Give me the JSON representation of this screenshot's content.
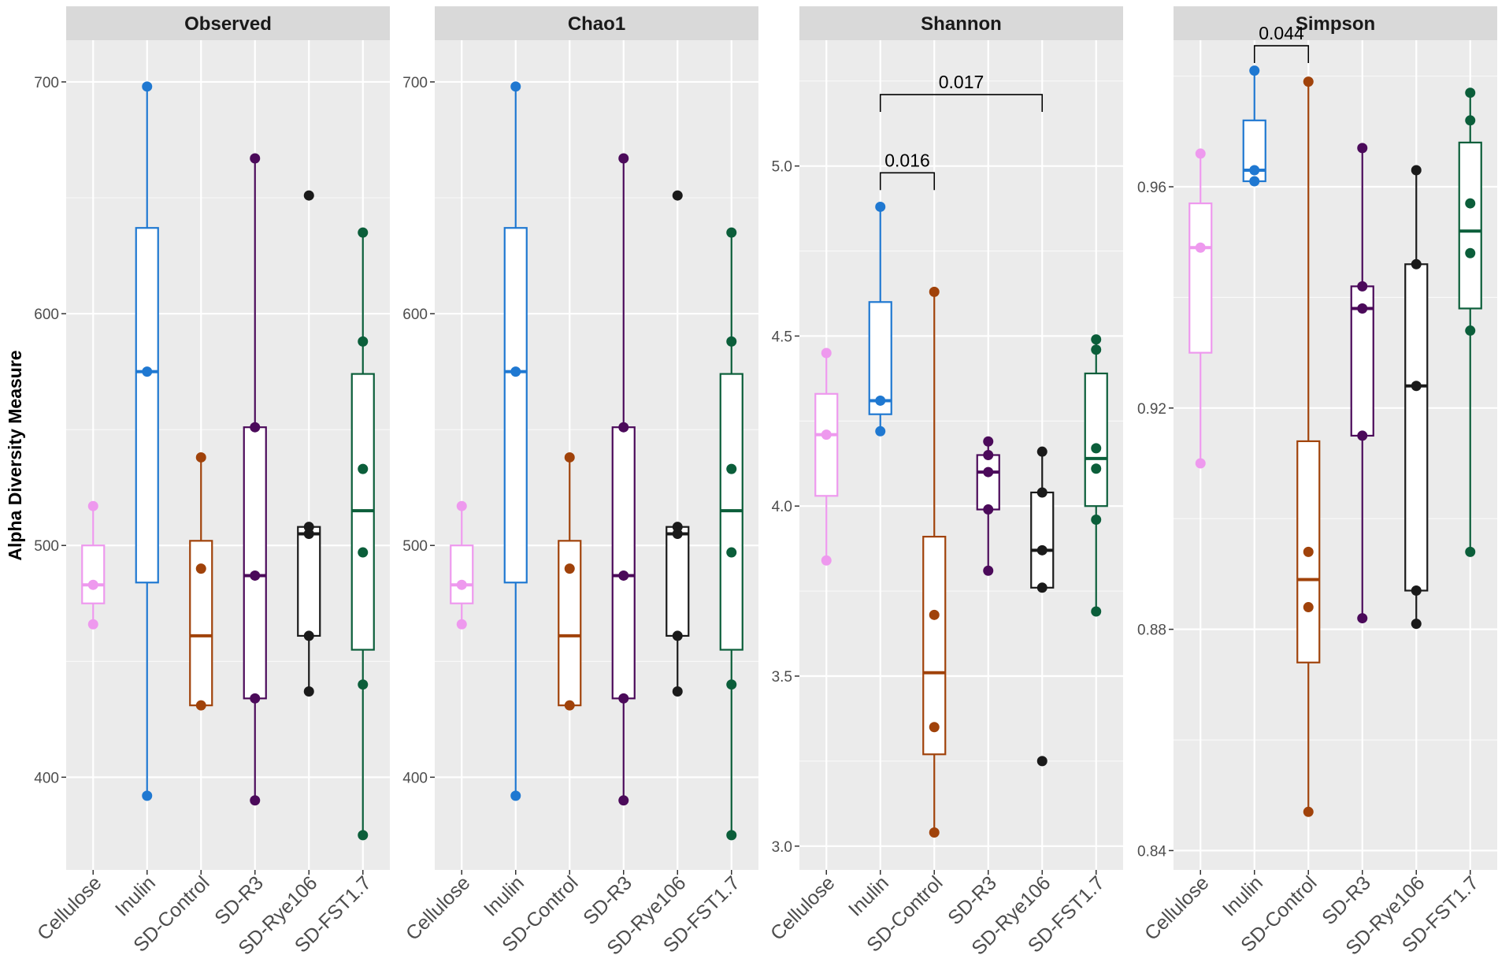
{
  "chart_data": {
    "type": "boxplot",
    "ylabel": "Alpha Diversity Measure",
    "categories": [
      "Cellulose",
      "Inulin",
      "SD-Control",
      "SD-R3",
      "SD-Rye106",
      "SD-FST1.7"
    ],
    "colors": {
      "Cellulose": "#ee99ee",
      "Inulin": "#1f78d1",
      "SD-Control": "#a0420a",
      "SD-R3": "#4b0a5a",
      "SD-Rye106": "#1a1a1a",
      "SD-FST1.7": "#0b5e3a"
    },
    "panel_background": "#ebebeb",
    "strip_background": "#d9d9d9",
    "panels": [
      {
        "title": "Observed",
        "ylim": [
          360,
          718
        ],
        "yticks": [
          400,
          500,
          600,
          700
        ],
        "ytick_labels": [
          "400",
          "500",
          "600",
          "700"
        ],
        "boxes": [
          {
            "group": "Cellulose",
            "min": 466,
            "q1": 475,
            "median": 483,
            "q3": 500,
            "max": 517,
            "points": [
              466,
              483,
              517
            ]
          },
          {
            "group": "Inulin",
            "min": 392,
            "q1": 484,
            "median": 575,
            "q3": 637,
            "max": 698,
            "points": [
              392,
              575,
              698
            ]
          },
          {
            "group": "SD-Control",
            "min": 431,
            "q1": 431,
            "median": 461,
            "q3": 502,
            "max": 538,
            "points": [
              431,
              490,
              538
            ]
          },
          {
            "group": "SD-R3",
            "min": 390,
            "q1": 434,
            "median": 487,
            "q3": 551,
            "max": 667,
            "points": [
              390,
              434,
              487,
              551,
              667
            ]
          },
          {
            "group": "SD-Rye106",
            "min": 437,
            "q1": 461,
            "median": 505,
            "q3": 508,
            "max": 508,
            "points": [
              437,
              461,
              505,
              508,
              651
            ]
          },
          {
            "group": "SD-FST1.7",
            "min": 375,
            "q1": 455,
            "median": 515,
            "q3": 574,
            "max": 635,
            "points": [
              375,
              440,
              497,
              533,
              588,
              635
            ]
          }
        ],
        "comparisons": []
      },
      {
        "title": "Chao1",
        "ylim": [
          360,
          718
        ],
        "yticks": [
          400,
          500,
          600,
          700
        ],
        "ytick_labels": [
          "400",
          "500",
          "600",
          "700"
        ],
        "boxes": [
          {
            "group": "Cellulose",
            "min": 466,
            "q1": 475,
            "median": 483,
            "q3": 500,
            "max": 517,
            "points": [
              466,
              483,
              517
            ]
          },
          {
            "group": "Inulin",
            "min": 392,
            "q1": 484,
            "median": 575,
            "q3": 637,
            "max": 698,
            "points": [
              392,
              575,
              698
            ]
          },
          {
            "group": "SD-Control",
            "min": 431,
            "q1": 431,
            "median": 461,
            "q3": 502,
            "max": 538,
            "points": [
              431,
              490,
              538
            ]
          },
          {
            "group": "SD-R3",
            "min": 390,
            "q1": 434,
            "median": 487,
            "q3": 551,
            "max": 667,
            "points": [
              390,
              434,
              487,
              551,
              667
            ]
          },
          {
            "group": "SD-Rye106",
            "min": 437,
            "q1": 461,
            "median": 505,
            "q3": 508,
            "max": 508,
            "points": [
              437,
              461,
              505,
              508,
              651
            ]
          },
          {
            "group": "SD-FST1.7",
            "min": 375,
            "q1": 455,
            "median": 515,
            "q3": 574,
            "max": 635,
            "points": [
              375,
              440,
              497,
              533,
              588,
              635
            ]
          }
        ],
        "comparisons": []
      },
      {
        "title": "Shannon",
        "ylim": [
          2.93,
          5.37
        ],
        "yticks": [
          3.0,
          3.5,
          4.0,
          4.5,
          5.0
        ],
        "ytick_labels": [
          "3.0",
          "3.5",
          "4.0",
          "4.5",
          "5.0"
        ],
        "boxes": [
          {
            "group": "Cellulose",
            "min": 3.84,
            "q1": 4.03,
            "median": 4.21,
            "q3": 4.33,
            "max": 4.45,
            "points": [
              3.84,
              4.21,
              4.45
            ]
          },
          {
            "group": "Inulin",
            "min": 4.22,
            "q1": 4.27,
            "median": 4.31,
            "q3": 4.6,
            "max": 4.88,
            "points": [
              4.22,
              4.31,
              4.88
            ]
          },
          {
            "group": "SD-Control",
            "min": 3.04,
            "q1": 3.27,
            "median": 3.51,
            "q3": 3.91,
            "max": 4.63,
            "points": [
              3.04,
              3.35,
              3.68,
              4.63
            ]
          },
          {
            "group": "SD-R3",
            "min": 3.81,
            "q1": 3.99,
            "median": 4.1,
            "q3": 4.15,
            "max": 4.19,
            "points": [
              3.81,
              3.99,
              4.1,
              4.15,
              4.19
            ]
          },
          {
            "group": "SD-Rye106",
            "min": 3.76,
            "q1": 3.76,
            "median": 3.87,
            "q3": 4.04,
            "max": 4.16,
            "points": [
              3.25,
              3.76,
              3.87,
              4.04,
              4.16
            ]
          },
          {
            "group": "SD-FST1.7",
            "min": 3.69,
            "q1": 4.0,
            "median": 4.14,
            "q3": 4.39,
            "max": 4.49,
            "points": [
              3.69,
              3.96,
              4.11,
              4.17,
              4.46,
              4.49
            ]
          }
        ],
        "comparisons": [
          {
            "from": "Inulin",
            "to": "SD-Control",
            "p_label": "0.016",
            "y": 4.98
          },
          {
            "from": "Inulin",
            "to": "SD-Rye106",
            "p_label": "0.017",
            "y": 5.21
          }
        ]
      },
      {
        "title": "Simpson",
        "ylim": [
          0.8365,
          0.9865
        ],
        "yticks": [
          0.84,
          0.88,
          0.92,
          0.96
        ],
        "ytick_labels": [
          "0.84",
          "0.88",
          "0.92",
          "0.96"
        ],
        "boxes": [
          {
            "group": "Cellulose",
            "min": 0.91,
            "q1": 0.93,
            "median": 0.949,
            "q3": 0.957,
            "max": 0.966,
            "points": [
              0.91,
              0.949,
              0.966
            ]
          },
          {
            "group": "Inulin",
            "min": 0.961,
            "q1": 0.961,
            "median": 0.963,
            "q3": 0.972,
            "max": 0.981,
            "points": [
              0.961,
              0.963,
              0.981
            ]
          },
          {
            "group": "SD-Control",
            "min": 0.847,
            "q1": 0.874,
            "median": 0.889,
            "q3": 0.914,
            "max": 0.979,
            "points": [
              0.847,
              0.884,
              0.894,
              0.979
            ]
          },
          {
            "group": "SD-R3",
            "min": 0.882,
            "q1": 0.915,
            "median": 0.938,
            "q3": 0.942,
            "max": 0.967,
            "points": [
              0.882,
              0.915,
              0.938,
              0.942,
              0.967
            ]
          },
          {
            "group": "SD-Rye106",
            "min": 0.881,
            "q1": 0.887,
            "median": 0.924,
            "q3": 0.946,
            "max": 0.963,
            "points": [
              0.881,
              0.887,
              0.924,
              0.946,
              0.963
            ]
          },
          {
            "group": "SD-FST1.7",
            "min": 0.894,
            "q1": 0.938,
            "median": 0.952,
            "q3": 0.968,
            "max": 0.977,
            "points": [
              0.894,
              0.934,
              0.948,
              0.957,
              0.972,
              0.977
            ]
          }
        ],
        "comparisons": [
          {
            "from": "Inulin",
            "to": "SD-Control",
            "p_label": "0.044",
            "y": 0.9855
          }
        ]
      }
    ]
  }
}
